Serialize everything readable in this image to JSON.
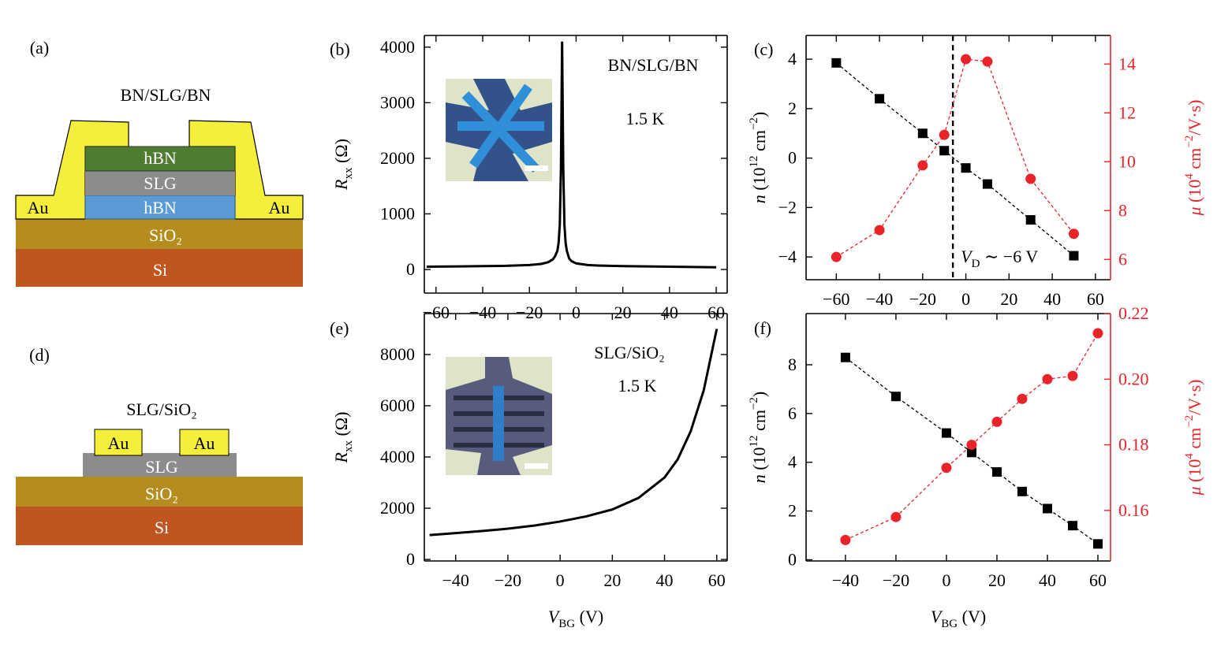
{
  "diagrams": [
    {
      "panel": "(a)",
      "title": "BN/SLG/BN",
      "layers": [
        "hBN",
        "SLG",
        "hBN",
        "SiO₂",
        "Si"
      ],
      "contacts": [
        "Au",
        "Au"
      ]
    },
    {
      "panel": "(d)",
      "title": "SLG/SiO₂",
      "layers": [
        "SLG",
        "SiO₂",
        "Si"
      ],
      "contacts": [
        "Au",
        "Au"
      ]
    }
  ],
  "chart_data": [
    {
      "type": "line",
      "panel": "(b)",
      "annotations": [
        "BN/SLG/BN",
        "1.5 K"
      ],
      "ylabel": {
        "parts": [
          "R",
          "xx",
          " (Ω)"
        ],
        "format": [
          "italic",
          "sub",
          "normal"
        ]
      },
      "x": [
        -64,
        -60,
        -50,
        -40,
        -30,
        -20,
        -15,
        -12,
        -10,
        -9,
        -8,
        -7.5,
        -7,
        -6.5,
        -6,
        -5.5,
        -5,
        -4.5,
        -4,
        -3,
        -2,
        0,
        5,
        10,
        20,
        30,
        40,
        50,
        60
      ],
      "series": [
        {
          "color": "#000000",
          "values": [
            50,
            52,
            55,
            60,
            65,
            80,
            100,
            130,
            180,
            240,
            340,
            480,
            800,
            1800,
            4100,
            1800,
            800,
            480,
            340,
            200,
            150,
            110,
            80,
            70,
            60,
            55,
            50,
            45,
            40
          ]
        }
      ],
      "xlim": [
        -65,
        64.7
      ],
      "ylim": [
        -425,
        4210
      ],
      "xticks": [
        {
          "value": -60,
          "label": "−60"
        },
        {
          "value": -40,
          "label": "−40"
        },
        {
          "value": -20,
          "label": "−20"
        },
        0,
        20,
        40,
        60
      ],
      "yticks": [
        0,
        1000,
        2000,
        3000,
        4000
      ]
    },
    {
      "type": "line",
      "panel": "(c)",
      "dashed": true,
      "ylabel": {
        "parts": [
          "n",
          " (10",
          "12",
          " cm",
          "−2",
          ")"
        ],
        "format": [
          "italic",
          "normal",
          "sup",
          "normal",
          "sup",
          "normal"
        ]
      },
      "y2label": {
        "parts": [
          "μ",
          " (10",
          "4",
          " cm",
          "−2",
          "/V·s)"
        ],
        "format": [
          "italic",
          "normal",
          "sup",
          "normal",
          "sup",
          "normal"
        ]
      },
      "vline": -6,
      "vline_label": {
        "parts": [
          "V",
          "D",
          " ∼ −6 V"
        ],
        "format": [
          "italic",
          "sub",
          "normal"
        ]
      },
      "x": [
        -60,
        -40,
        -20,
        -10,
        0,
        10,
        30,
        50
      ],
      "series": [
        {
          "color": "#000000",
          "marker": "square",
          "values": [
            3.85,
            2.4,
            1.0,
            0.3,
            -0.4,
            -1.05,
            -2.5,
            -3.95
          ]
        },
        {
          "color": "#e8242a",
          "marker": "circle",
          "axis": "y2",
          "values": [
            6.1,
            7.2,
            9.85,
            11.1,
            14.2,
            14.1,
            9.3,
            7.05
          ]
        }
      ],
      "xlim": [
        -74,
        67
      ],
      "ylim": [
        -4.92,
        4.96
      ],
      "y2lim": [
        5.17,
        15.17
      ],
      "xticks": [
        {
          "value": -60,
          "label": "−60"
        },
        {
          "value": -40,
          "label": "−40"
        },
        {
          "value": -20,
          "label": "−20"
        },
        0,
        20,
        40,
        60
      ],
      "yticks": [
        {
          "value": -4,
          "label": "−4"
        },
        {
          "value": -2,
          "label": "−2"
        },
        0,
        2,
        4
      ],
      "y2ticks": [
        6,
        8,
        10,
        12,
        14
      ]
    },
    {
      "type": "line",
      "panel": "(e)",
      "annotations": [
        "SLG/SiO₂",
        "1.5 K"
      ],
      "ylabel": {
        "parts": [
          "R",
          "xx",
          " (Ω)"
        ],
        "format": [
          "italic",
          "sub",
          "normal"
        ]
      },
      "xlabel": {
        "parts": [
          "V",
          "BG",
          " (V)"
        ],
        "format": [
          "italic",
          "sub",
          "normal"
        ]
      },
      "x": [
        -50,
        -40,
        -30,
        -20,
        -10,
        0,
        10,
        20,
        30,
        40,
        45,
        50,
        55,
        60
      ],
      "series": [
        {
          "color": "#000000",
          "values": [
            950,
            1030,
            1110,
            1200,
            1320,
            1480,
            1680,
            1950,
            2400,
            3200,
            3900,
            5000,
            6600,
            9000
          ]
        }
      ],
      "xlim": [
        -52,
        64
      ],
      "ylim": [
        -60,
        9600
      ],
      "xticks": [
        {
          "value": -40,
          "label": "−40"
        },
        {
          "value": -20,
          "label": "−20"
        },
        0,
        20,
        40,
        60
      ],
      "yticks": [
        0,
        2000,
        4000,
        6000,
        8000
      ]
    },
    {
      "type": "line",
      "panel": "(f)",
      "dashed": true,
      "ylabel": {
        "parts": [
          "n",
          " (10",
          "12",
          " cm",
          "−2",
          ")"
        ],
        "format": [
          "italic",
          "normal",
          "sup",
          "normal",
          "sup",
          "normal"
        ]
      },
      "y2label": {
        "parts": [
          "μ",
          " (10",
          "4",
          " cm",
          "−2",
          "/V·s)"
        ],
        "format": [
          "italic",
          "normal",
          "sup",
          "normal",
          "sup",
          "normal"
        ]
      },
      "xlabel": {
        "parts": [
          "V",
          "BG",
          " (V)"
        ],
        "format": [
          "italic",
          "sub",
          "normal"
        ]
      },
      "x": [
        -40,
        -20,
        0,
        10,
        20,
        30,
        40,
        50,
        60
      ],
      "series": [
        {
          "color": "#000000",
          "marker": "square",
          "values": [
            8.3,
            6.7,
            5.2,
            4.4,
            3.6,
            2.8,
            2.1,
            1.4,
            0.65
          ]
        },
        {
          "color": "#e8242a",
          "marker": "circle",
          "axis": "y2",
          "values": [
            0.151,
            0.158,
            0.173,
            0.18,
            0.187,
            0.194,
            0.2,
            0.201,
            0.214
          ]
        }
      ],
      "xlim": [
        -55.6,
        65
      ],
      "ylim": [
        -0.05,
        10.1
      ],
      "y2lim": [
        0.1446,
        0.22
      ],
      "xticks": [
        {
          "value": -40,
          "label": "−40"
        },
        {
          "value": -20,
          "label": "−20"
        },
        0,
        20,
        40,
        60
      ],
      "yticks": [
        0,
        2,
        4,
        6,
        8
      ],
      "y2ticks": [
        0.16,
        0.18,
        {
          "value": 0.2,
          "label": "0.20"
        },
        0.22
      ]
    }
  ]
}
